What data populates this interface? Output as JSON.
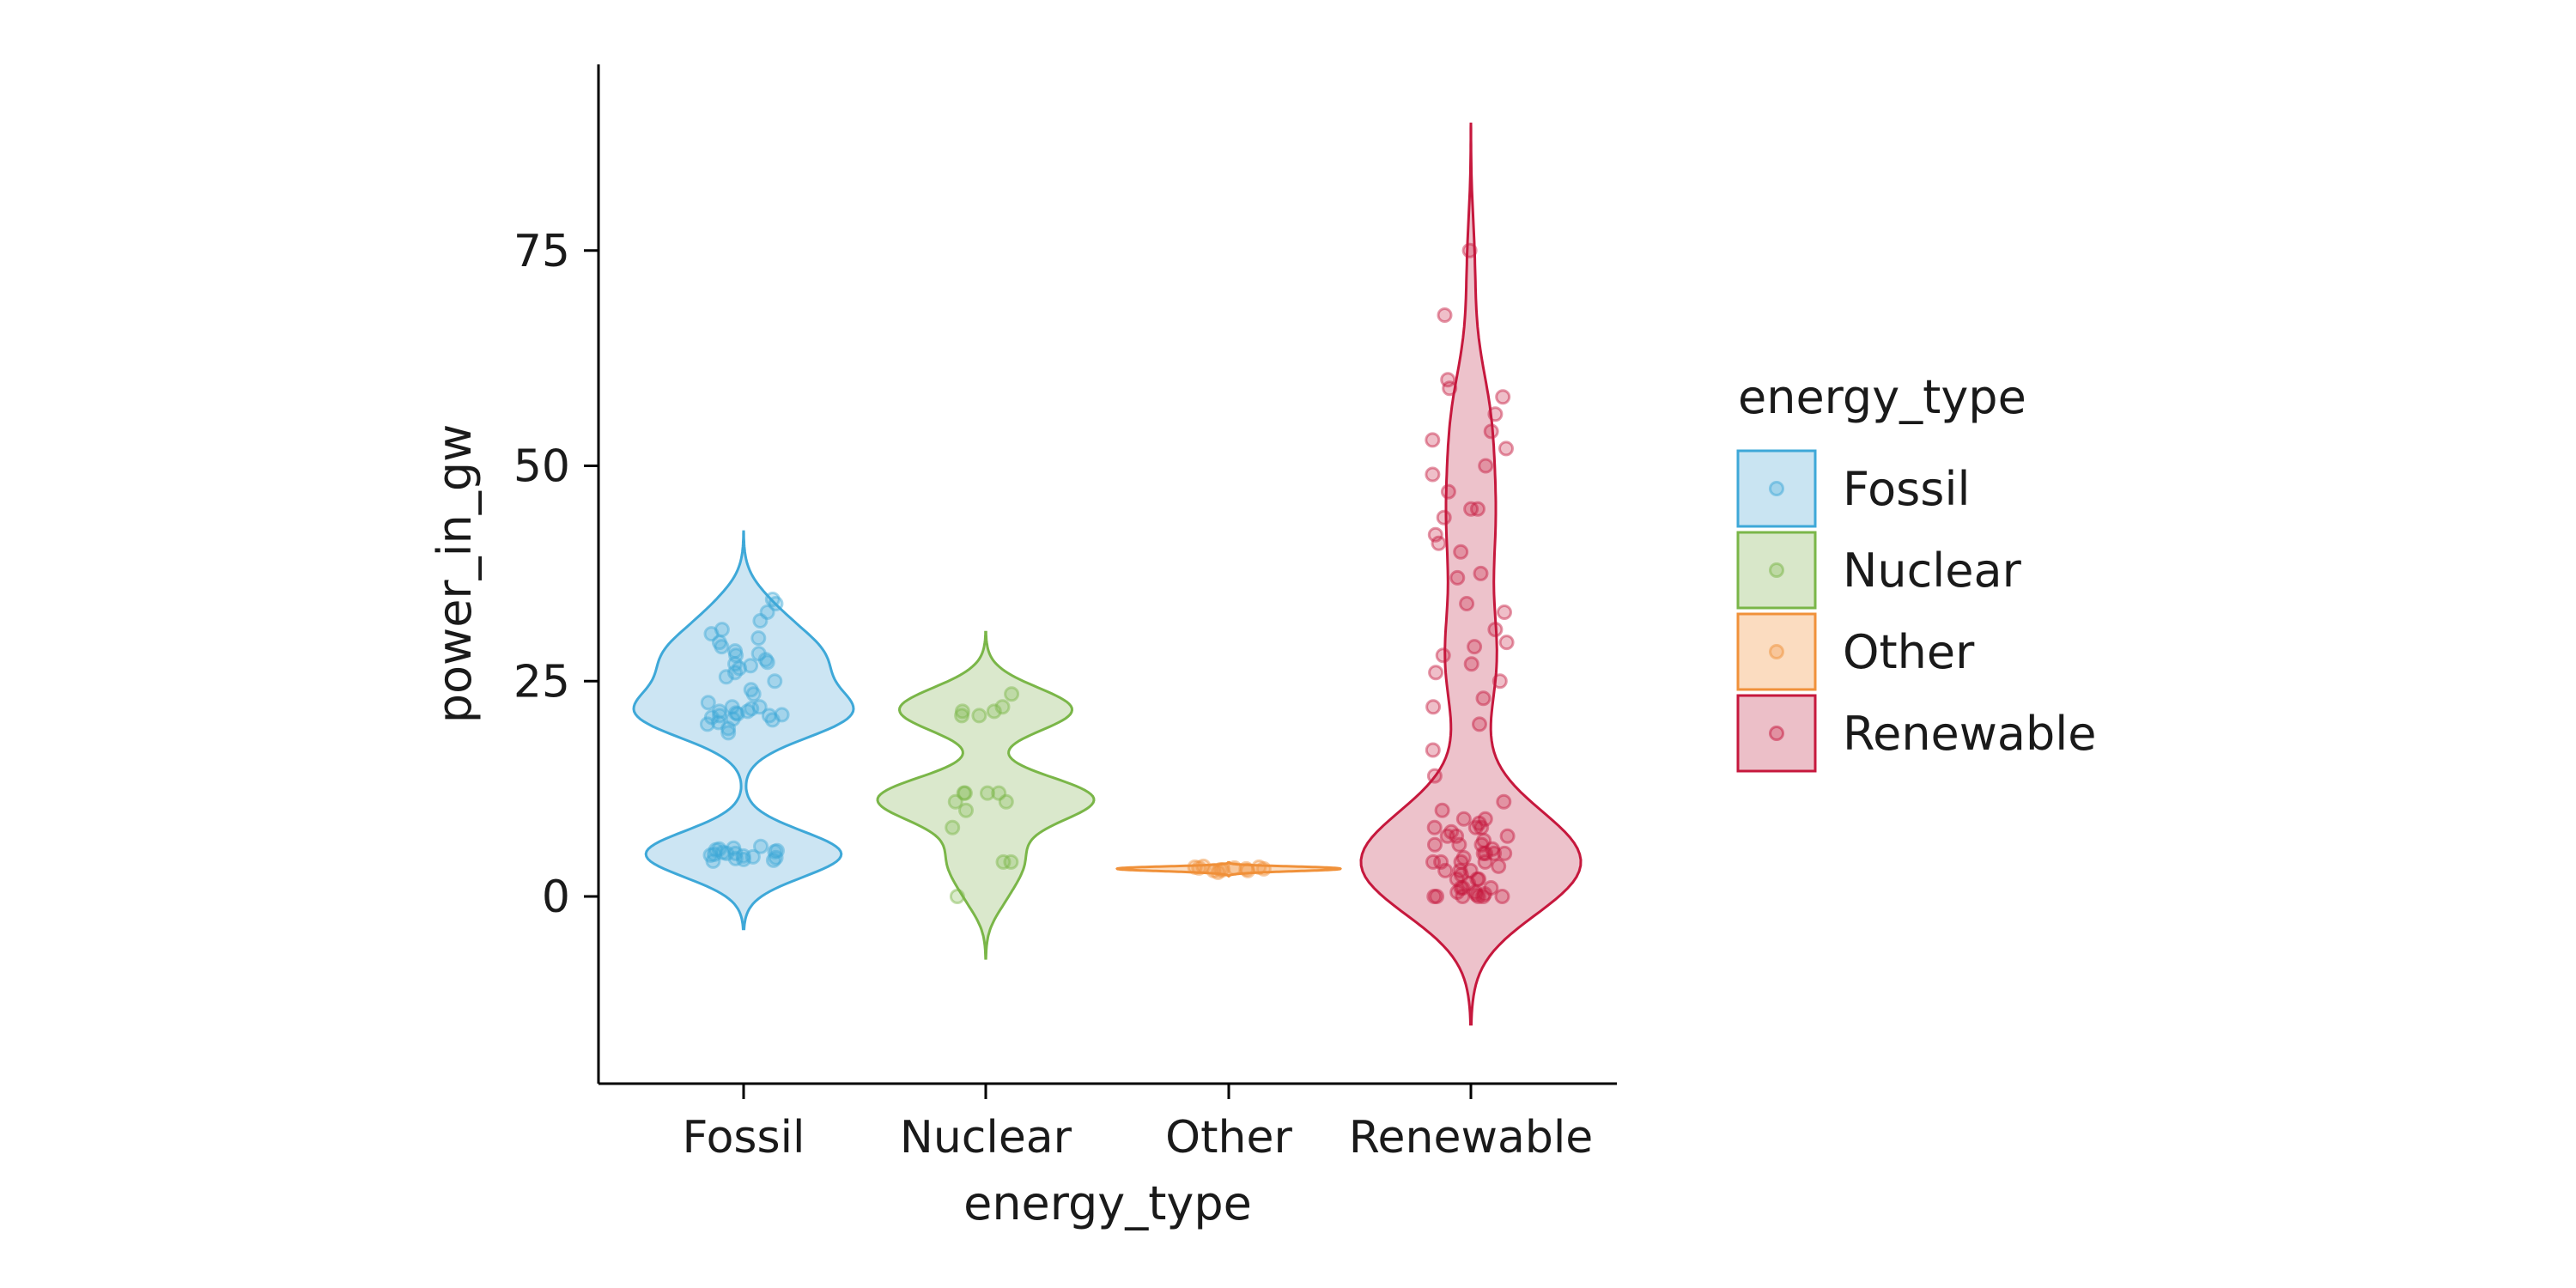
{
  "chart_data": {
    "type": "violin",
    "xlabel": "energy_type",
    "ylabel": "power_in_gw",
    "ylim": [
      -17,
      97
    ],
    "yticks": [
      0,
      25,
      50,
      75
    ],
    "categories": [
      "Fossil",
      "Nuclear",
      "Other",
      "Renewable"
    ],
    "legend": {
      "title": "energy_type",
      "placement": "right",
      "items": [
        "Fossil",
        "Nuclear",
        "Other",
        "Renewable"
      ]
    },
    "grid": false,
    "series": [
      {
        "name": "Fossil",
        "color": "#3ea8d8",
        "fill": "#c9e4f2",
        "points": [
          4.2,
          4.5,
          4.8,
          5.0,
          5.2,
          5.4,
          5.6,
          4.3,
          4.6,
          5.1,
          4.9,
          5.3,
          4.4,
          5.5,
          4.7,
          5.0,
          4.1,
          5.8,
          19,
          19.5,
          20,
          20.5,
          21,
          21,
          21.2,
          21.5,
          21.5,
          22,
          22,
          21.8,
          20.8,
          20.2,
          21.3,
          22.5,
          21.1,
          20.6,
          23.5,
          24,
          25,
          25.5,
          26,
          26.5,
          27,
          27.5,
          28,
          28.5,
          29,
          29.5,
          30,
          30.5,
          31,
          32,
          33,
          34,
          34.5,
          27.2,
          28.2,
          26.8
        ]
      },
      {
        "name": "Nuclear",
        "color": "#7ab648",
        "fill": "#d8e7c9",
        "points": [
          0,
          4,
          4,
          8,
          10,
          11,
          11,
          12,
          12,
          12,
          12,
          21,
          21,
          21.5,
          21.5,
          22,
          23.5
        ]
      },
      {
        "name": "Other",
        "color": "#f0913a",
        "fill": "#fbdcc0",
        "points": [
          2.8,
          3.0,
          3.1,
          3.2,
          3.3,
          3.4,
          3.5,
          3.2,
          3.1,
          3.3,
          3.0,
          3.4
        ]
      },
      {
        "name": "Renewable",
        "color": "#c6183d",
        "fill": "#ecbfc8",
        "points": [
          0,
          0,
          0,
          0,
          0,
          0,
          0.2,
          0.3,
          0.5,
          0.5,
          1,
          1,
          1,
          1.5,
          2,
          2,
          2,
          2.5,
          3,
          3,
          3,
          3.5,
          4,
          4,
          4,
          4,
          4.5,
          5,
          5,
          5,
          5,
          5.5,
          6,
          6,
          6,
          6.5,
          7,
          7,
          7,
          7.5,
          8,
          8,
          8,
          8.5,
          9,
          9,
          10,
          11,
          14,
          17,
          20,
          22,
          23,
          25,
          26,
          27,
          28,
          29,
          29.5,
          31,
          33,
          34,
          37,
          37.5,
          40,
          41,
          42,
          44,
          45,
          45,
          47,
          49,
          50,
          52,
          53,
          54,
          56,
          58,
          59,
          60,
          67.5,
          75
        ]
      }
    ]
  }
}
